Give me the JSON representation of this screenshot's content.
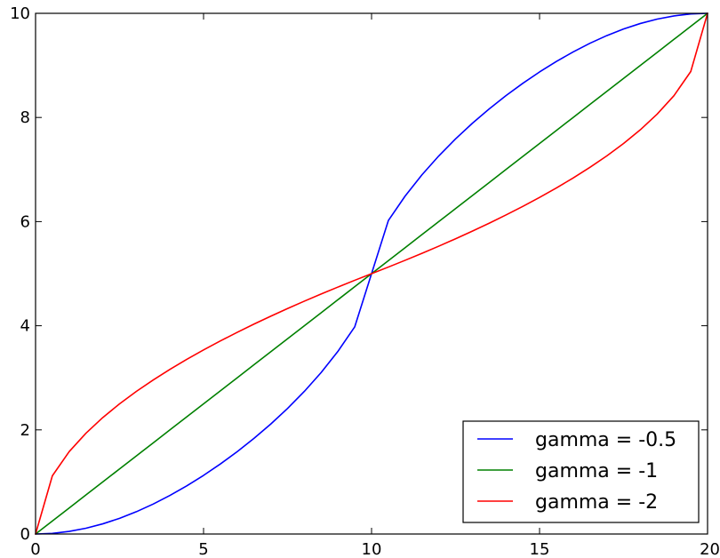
{
  "chart_data": {
    "type": "line",
    "title": "",
    "xlabel": "",
    "ylabel": "",
    "xlim": [
      0,
      20
    ],
    "ylim": [
      0,
      10
    ],
    "x_ticks": [
      0,
      5,
      10,
      15,
      20
    ],
    "y_ticks": [
      0,
      2,
      4,
      6,
      8,
      10
    ],
    "x_tick_labels": [
      "0",
      "5",
      "10",
      "15",
      "20"
    ],
    "y_tick_labels": [
      "0",
      "2",
      "4",
      "6",
      "8",
      "10"
    ],
    "grid": false,
    "legend_position": "bottom-right",
    "x": [
      0,
      0.5,
      1,
      1.5,
      2,
      2.5,
      3,
      3.5,
      4,
      4.5,
      5,
      5.5,
      6,
      6.5,
      7,
      7.5,
      8,
      8.5,
      9,
      9.5,
      10,
      10.5,
      11,
      11.5,
      12,
      12.5,
      13,
      13.5,
      14,
      14.5,
      15,
      15.5,
      16,
      16.5,
      17,
      17.5,
      18,
      18.5,
      19,
      19.5,
      20
    ],
    "series": [
      {
        "name": "gamma = -0.5",
        "color": "#0000ff",
        "values": [
          0,
          0.012,
          0.05,
          0.111,
          0.195,
          0.301,
          0.428,
          0.575,
          0.741,
          0.925,
          1.126,
          1.345,
          1.581,
          1.836,
          2.112,
          2.412,
          2.739,
          3.102,
          3.509,
          3.98,
          5.0,
          6.02,
          6.491,
          6.898,
          7.261,
          7.588,
          7.888,
          8.164,
          8.419,
          8.655,
          8.874,
          9.075,
          9.259,
          9.425,
          9.572,
          9.699,
          9.805,
          9.889,
          9.95,
          9.988,
          10
        ]
      },
      {
        "name": "gamma = -1",
        "color": "#008000",
        "values": [
          0,
          0.25,
          0.5,
          0.75,
          1.0,
          1.25,
          1.5,
          1.75,
          2.0,
          2.25,
          2.5,
          2.75,
          3.0,
          3.25,
          3.5,
          3.75,
          4.0,
          4.25,
          4.5,
          4.75,
          5.0,
          5.25,
          5.5,
          5.75,
          6.0,
          6.25,
          6.5,
          6.75,
          7.0,
          7.25,
          7.5,
          7.75,
          8.0,
          8.25,
          8.5,
          8.75,
          9.0,
          9.25,
          9.5,
          9.75,
          10
        ]
      },
      {
        "name": "gamma = -2",
        "color": "#ff0000",
        "values": [
          0,
          1.118,
          1.581,
          1.936,
          2.236,
          2.5,
          2.739,
          2.958,
          3.162,
          3.354,
          3.536,
          3.708,
          3.873,
          4.031,
          4.183,
          4.33,
          4.472,
          4.61,
          4.743,
          4.873,
          5.0,
          5.127,
          5.257,
          5.39,
          5.528,
          5.67,
          5.817,
          5.969,
          6.127,
          6.292,
          6.464,
          6.646,
          6.838,
          7.042,
          7.261,
          7.5,
          7.764,
          8.064,
          8.419,
          8.882,
          10
        ]
      }
    ]
  }
}
